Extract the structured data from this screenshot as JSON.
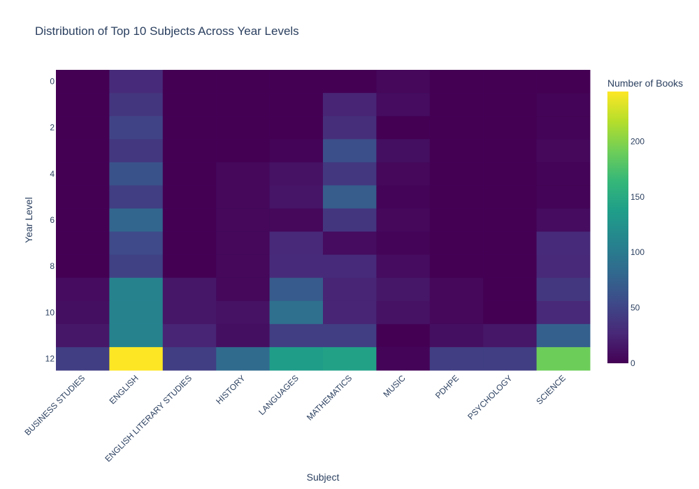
{
  "chart_data": {
    "type": "heatmap",
    "title": "Distribution of Top 10 Subjects Across Year Levels",
    "xlabel": "Subject",
    "ylabel": "Year Level",
    "x": [
      "BUSINESS STUDIES",
      "ENGLISH",
      "ENGLISH LITERARY STUDIES",
      "HISTORY",
      "LANGUAGES",
      "MATHEMATICS",
      "MUSIC",
      "PDHPE",
      "PSYCHOLOGY",
      "SCIENCE"
    ],
    "y": [
      0,
      1,
      2,
      3,
      4,
      5,
      6,
      7,
      8,
      9,
      10,
      11,
      12
    ],
    "y_tick_labels": [
      "0",
      "2",
      "4",
      "6",
      "8",
      "10",
      "12"
    ],
    "y_tick_values": [
      0,
      2,
      4,
      6,
      8,
      10,
      12
    ],
    "z": [
      [
        0,
        30,
        0,
        0,
        0,
        0,
        5,
        0,
        0,
        0
      ],
      [
        0,
        38,
        0,
        0,
        0,
        25,
        8,
        0,
        0,
        2
      ],
      [
        0,
        50,
        0,
        0,
        0,
        32,
        0,
        0,
        0,
        2
      ],
      [
        0,
        40,
        0,
        0,
        2,
        60,
        10,
        0,
        0,
        5
      ],
      [
        0,
        62,
        0,
        5,
        12,
        40,
        5,
        0,
        0,
        2
      ],
      [
        0,
        45,
        0,
        5,
        14,
        72,
        3,
        0,
        0,
        2
      ],
      [
        0,
        80,
        0,
        5,
        5,
        38,
        5,
        0,
        0,
        8
      ],
      [
        0,
        55,
        0,
        5,
        28,
        8,
        3,
        0,
        0,
        30
      ],
      [
        0,
        48,
        0,
        5,
        30,
        30,
        8,
        0,
        0,
        28
      ],
      [
        8,
        110,
        15,
        5,
        70,
        25,
        15,
        5,
        0,
        40
      ],
      [
        10,
        110,
        15,
        12,
        90,
        25,
        12,
        5,
        0,
        28
      ],
      [
        15,
        110,
        25,
        10,
        45,
        45,
        0,
        10,
        15,
        75
      ],
      [
        45,
        245,
        45,
        85,
        135,
        140,
        3,
        45,
        45,
        190
      ]
    ],
    "colorscale": "Viridis",
    "zmin": 0,
    "zmax": 245,
    "colorbar": {
      "title": "Number of Books",
      "ticks": [
        0,
        50,
        100,
        150,
        200
      ],
      "tick_labels": [
        "0",
        "50",
        "100",
        "150",
        "200"
      ]
    }
  }
}
